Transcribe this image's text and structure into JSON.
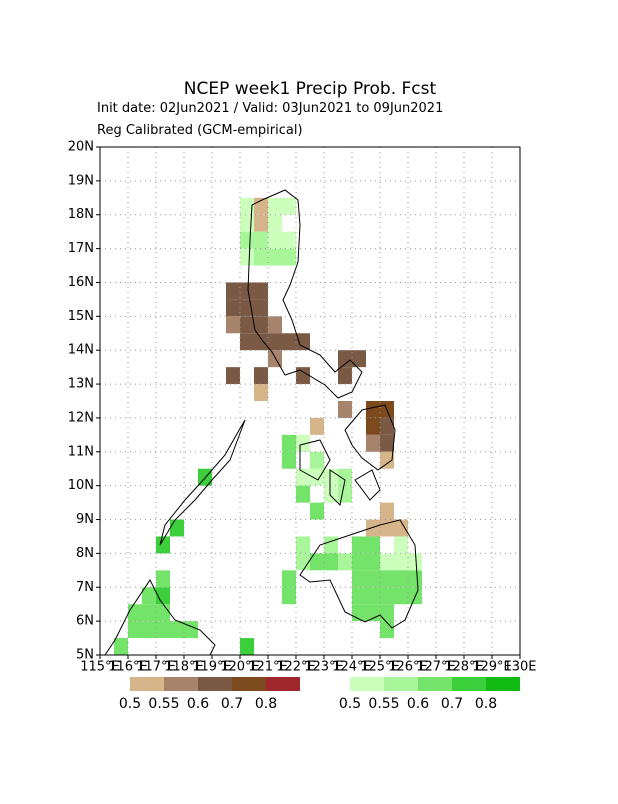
{
  "title": "NCEP week1 Precip Prob. Fcst",
  "subtitle": "Init date: 02Jun2021 / Valid: 03Jun2021 to 09Jun2021",
  "note": "Reg Calibrated (GCM-empirical)",
  "map": {
    "lonlim": [
      115,
      130
    ],
    "latlim": [
      5,
      20
    ],
    "cell_size": 0.5,
    "lonticks": [
      {
        "value": 115,
        "label": "115°E"
      },
      {
        "value": 116,
        "label": "116°E"
      },
      {
        "value": 117,
        "label": "117°E"
      },
      {
        "value": 118,
        "label": "118°E"
      },
      {
        "value": 119,
        "label": "119°E"
      },
      {
        "value": 120,
        "label": "120°E"
      },
      {
        "value": 121,
        "label": "121°E"
      },
      {
        "value": 122,
        "label": "122°E"
      },
      {
        "value": 123,
        "label": "123°E"
      },
      {
        "value": 124,
        "label": "124°E"
      },
      {
        "value": 125,
        "label": "125°E"
      },
      {
        "value": 126,
        "label": "126°E"
      },
      {
        "value": 127,
        "label": "127°E"
      },
      {
        "value": 128,
        "label": "128°E"
      },
      {
        "value": 129,
        "label": "129°E"
      },
      {
        "value": 130,
        "label": "130E"
      }
    ],
    "latticks": [
      {
        "value": 5,
        "label": "5N"
      },
      {
        "value": 6,
        "label": "6N"
      },
      {
        "value": 7,
        "label": "7N"
      },
      {
        "value": 8,
        "label": "8N"
      },
      {
        "value": 9,
        "label": "9N"
      },
      {
        "value": 10,
        "label": "10N"
      },
      {
        "value": 11,
        "label": "11N"
      },
      {
        "value": 12,
        "label": "12N"
      },
      {
        "value": 13,
        "label": "13N"
      },
      {
        "value": 14,
        "label": "14N"
      },
      {
        "value": 15,
        "label": "15N"
      },
      {
        "value": 16,
        "label": "16N"
      },
      {
        "value": 17,
        "label": "17N"
      },
      {
        "value": 18,
        "label": "18N"
      },
      {
        "value": 19,
        "label": "19N"
      },
      {
        "value": 20,
        "label": "20N"
      }
    ],
    "grid": true
  },
  "colorbars": [
    {
      "levels": [
        0.5,
        0.55,
        0.6,
        0.7,
        0.8
      ],
      "colors": [
        "#d7b58a",
        "#a6836a",
        "#7a5a45",
        "#7d4a1e",
        "#a0282c"
      ]
    },
    {
      "levels": [
        0.5,
        0.55,
        0.6,
        0.7,
        0.8
      ],
      "colors": [
        "#ccffbb",
        "#a8f59a",
        "#74e36a",
        "#3bcf3b",
        "#12bb12"
      ]
    }
  ],
  "cells": [
    [
      [
        120.5,
        17.5,
        0.5
      ],
      [
        120.5,
        18.0,
        0.5
      ],
      [
        119.5,
        15.5,
        0.6
      ],
      [
        120.0,
        15.5,
        0.6
      ],
      [
        120.5,
        15.5,
        0.6
      ],
      [
        119.5,
        15.0,
        0.6
      ],
      [
        120.0,
        15.0,
        0.6
      ],
      [
        120.5,
        15.0,
        0.6
      ],
      [
        119.5,
        14.5,
        0.55
      ],
      [
        120.0,
        14.5,
        0.6
      ],
      [
        120.5,
        14.5,
        0.6
      ],
      [
        121.0,
        14.5,
        0.55
      ],
      [
        120.0,
        14.0,
        0.6
      ],
      [
        120.5,
        14.0,
        0.6
      ],
      [
        121.0,
        14.0,
        0.6
      ],
      [
        121.5,
        14.0,
        0.6
      ],
      [
        122.0,
        14.0,
        0.6
      ],
      [
        121.0,
        13.5,
        0.55
      ],
      [
        119.5,
        13.0,
        0.6
      ],
      [
        120.5,
        13.0,
        0.6
      ],
      [
        122.0,
        13.0,
        0.6
      ],
      [
        120.5,
        12.5,
        0.5
      ],
      [
        123.5,
        13.5,
        0.6
      ],
      [
        124.0,
        13.5,
        0.6
      ],
      [
        123.5,
        13.0,
        0.6
      ],
      [
        123.5,
        12.0,
        0.55
      ],
      [
        122.5,
        11.5,
        0.5
      ],
      [
        124.5,
        12.0,
        0.7
      ],
      [
        125.0,
        12.0,
        0.7
      ],
      [
        124.5,
        11.5,
        0.7
      ],
      [
        125.0,
        11.5,
        0.6
      ],
      [
        124.5,
        11.0,
        0.55
      ],
      [
        125.0,
        11.0,
        0.6
      ],
      [
        125.0,
        10.5,
        0.5
      ],
      [
        125.0,
        9.0,
        0.5
      ],
      [
        124.5,
        8.5,
        0.5
      ],
      [
        125.0,
        8.5,
        0.5
      ],
      [
        125.5,
        8.5,
        0.5
      ]
    ],
    [
      [
        120.0,
        16.5,
        0.5
      ],
      [
        120.5,
        16.5,
        0.55
      ],
      [
        121.0,
        16.5,
        0.55
      ],
      [
        121.5,
        16.5,
        0.55
      ],
      [
        120.0,
        17.0,
        0.55
      ],
      [
        120.5,
        17.0,
        0.55
      ],
      [
        121.0,
        17.0,
        0.5
      ],
      [
        121.5,
        17.0,
        0.5
      ],
      [
        120.0,
        17.5,
        0.5
      ],
      [
        121.0,
        17.5,
        0.5
      ],
      [
        120.0,
        18.0,
        0.5
      ],
      [
        121.0,
        18.0,
        0.5
      ],
      [
        121.5,
        18.0,
        0.5
      ],
      [
        121.5,
        10.5,
        0.6
      ],
      [
        121.5,
        11.0,
        0.6
      ],
      [
        122.0,
        11.0,
        0.5
      ],
      [
        122.5,
        10.5,
        0.55
      ],
      [
        122.0,
        10.0,
        0.5
      ],
      [
        122.5,
        10.0,
        0.5
      ],
      [
        123.0,
        10.0,
        0.5
      ],
      [
        122.0,
        9.5,
        0.6
      ],
      [
        122.5,
        9.0,
        0.6
      ],
      [
        123.0,
        9.5,
        0.5
      ],
      [
        123.5,
        9.5,
        0.55
      ],
      [
        123.5,
        10.0,
        0.55
      ],
      [
        121.5,
        7.0,
        0.6
      ],
      [
        121.5,
        6.5,
        0.6
      ],
      [
        122.0,
        7.5,
        0.55
      ],
      [
        122.0,
        8.0,
        0.55
      ],
      [
        122.5,
        7.5,
        0.6
      ],
      [
        123.0,
        7.5,
        0.6
      ],
      [
        123.0,
        8.0,
        0.55
      ],
      [
        123.5,
        7.5,
        0.55
      ],
      [
        124.0,
        7.5,
        0.6
      ],
      [
        124.0,
        8.0,
        0.6
      ],
      [
        124.5,
        8.0,
        0.6
      ],
      [
        124.5,
        7.5,
        0.6
      ],
      [
        124.0,
        7.0,
        0.6
      ],
      [
        124.5,
        7.0,
        0.6
      ],
      [
        124.0,
        6.5,
        0.6
      ],
      [
        124.5,
        6.5,
        0.6
      ],
      [
        124.0,
        6.0,
        0.6
      ],
      [
        124.5,
        6.0,
        0.6
      ],
      [
        125.0,
        6.0,
        0.6
      ],
      [
        125.0,
        5.5,
        0.6
      ],
      [
        125.0,
        7.5,
        0.5
      ],
      [
        125.5,
        7.5,
        0.5
      ],
      [
        125.5,
        8.0,
        0.5
      ],
      [
        125.0,
        7.0,
        0.6
      ],
      [
        125.5,
        7.0,
        0.6
      ],
      [
        125.0,
        6.5,
        0.6
      ],
      [
        125.5,
        6.5,
        0.6
      ],
      [
        126.0,
        7.0,
        0.6
      ],
      [
        126.0,
        6.5,
        0.6
      ],
      [
        126.0,
        7.5,
        0.5
      ],
      [
        115.5,
        5.0,
        0.6
      ],
      [
        116.0,
        5.5,
        0.6
      ],
      [
        116.5,
        5.5,
        0.6
      ],
      [
        117.0,
        5.5,
        0.6
      ],
      [
        117.5,
        5.5,
        0.6
      ],
      [
        118.0,
        5.5,
        0.6
      ],
      [
        116.0,
        6.0,
        0.6
      ],
      [
        116.5,
        6.0,
        0.6
      ],
      [
        117.0,
        6.0,
        0.6
      ],
      [
        116.5,
        6.5,
        0.6
      ],
      [
        117.0,
        6.5,
        0.7
      ],
      [
        117.0,
        7.0,
        0.6
      ],
      [
        117.0,
        8.0,
        0.7
      ],
      [
        117.5,
        8.5,
        0.7
      ],
      [
        118.5,
        10.0,
        0.7
      ],
      [
        120.0,
        5.0,
        0.7
      ]
    ]
  ]
}
